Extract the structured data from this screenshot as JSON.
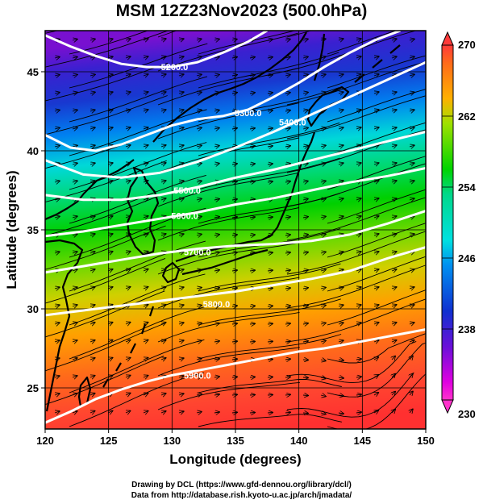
{
  "title": "MSM 12Z23Nov2023 (500.0hPa)",
  "footer": {
    "line1": "Drawing by DCL (https://www.gfd-dennou.org/library/dcl/)",
    "line2": "Data from http://database.rish.kyoto-u.ac.jp/arch/jmadata/"
  },
  "map": {
    "x_label": "Longitude (degrees)",
    "y_label": "Latitude  (degrees)",
    "x_range": [
      120,
      150
    ],
    "y_range": [
      22.4,
      47.6
    ],
    "x_ticks": [
      120,
      125,
      130,
      135,
      140,
      145,
      150
    ],
    "y_ticks": [
      25,
      30,
      35,
      40,
      45
    ],
    "contours": [
      {
        "label": "5200.0",
        "label_lon": 130.2,
        "label_lat": 45.3,
        "points": [
          [
            120,
            47.3
          ],
          [
            122,
            46.6
          ],
          [
            124,
            46.0
          ],
          [
            126,
            45.5
          ],
          [
            128,
            45.3
          ],
          [
            130,
            45.3
          ],
          [
            132,
            45.6
          ],
          [
            134,
            46.2
          ],
          [
            136,
            46.9
          ],
          [
            137.5,
            47.6
          ]
        ]
      },
      {
        "label": "5300.0",
        "label_lon": 136.0,
        "label_lat": 42.4,
        "points": [
          [
            120,
            41.0
          ],
          [
            122,
            40.2
          ],
          [
            124,
            40.0
          ],
          [
            126,
            40.4
          ],
          [
            128,
            41.0
          ],
          [
            130,
            41.6
          ],
          [
            132,
            42.0
          ],
          [
            134,
            42.2
          ],
          [
            136,
            42.6
          ],
          [
            138,
            43.4
          ],
          [
            140,
            44.3
          ],
          [
            142,
            45.3
          ],
          [
            144,
            46.2
          ],
          [
            146,
            47.0
          ],
          [
            148,
            47.6
          ]
        ]
      },
      {
        "label": "5400.0",
        "label_lon": 139.5,
        "label_lat": 41.8,
        "points": [
          [
            120,
            39.4
          ],
          [
            123,
            38.5
          ],
          [
            126,
            38.3
          ],
          [
            129,
            38.6
          ],
          [
            132,
            39.3
          ],
          [
            135,
            40.2
          ],
          [
            138,
            41.2
          ],
          [
            141,
            42.3
          ],
          [
            144,
            43.4
          ],
          [
            147,
            44.5
          ],
          [
            150,
            45.6
          ]
        ]
      },
      {
        "label": "5500.0",
        "label_lon": 131.2,
        "label_lat": 37.5,
        "points": [
          [
            120,
            37.2
          ],
          [
            123,
            36.9
          ],
          [
            126,
            36.9
          ],
          [
            129,
            37.2
          ],
          [
            132,
            37.7
          ],
          [
            135,
            38.3
          ],
          [
            138,
            38.8
          ],
          [
            141,
            39.4
          ],
          [
            144,
            40.0
          ],
          [
            147,
            40.6
          ],
          [
            150,
            41.2
          ]
        ]
      },
      {
        "label": "5600.0",
        "label_lon": 131.0,
        "label_lat": 35.9,
        "points": [
          [
            120,
            34.6
          ],
          [
            123,
            34.9
          ],
          [
            126,
            35.3
          ],
          [
            129,
            35.7
          ],
          [
            132,
            36.1
          ],
          [
            135,
            36.6
          ],
          [
            138,
            37.0
          ],
          [
            141,
            37.5
          ],
          [
            144,
            38.0
          ],
          [
            147,
            38.4
          ],
          [
            150,
            38.9
          ]
        ]
      },
      {
        "label": "5700.0",
        "label_lon": 132.0,
        "label_lat": 33.6,
        "points": [
          [
            120,
            32.3
          ],
          [
            123,
            32.7
          ],
          [
            126,
            33.1
          ],
          [
            129,
            33.5
          ],
          [
            132,
            33.8
          ],
          [
            135,
            34.0
          ],
          [
            138,
            34.1
          ],
          [
            141,
            34.3
          ],
          [
            144,
            34.7
          ],
          [
            147,
            35.4
          ],
          [
            150,
            36.2
          ]
        ]
      },
      {
        "label": "5800.0",
        "label_lon": 133.5,
        "label_lat": 30.3,
        "points": [
          [
            120,
            29.6
          ],
          [
            123,
            29.9
          ],
          [
            126,
            30.2
          ],
          [
            129,
            30.5
          ],
          [
            132,
            30.8
          ],
          [
            135,
            31.1
          ],
          [
            138,
            31.5
          ],
          [
            141,
            31.9
          ],
          [
            144,
            32.4
          ],
          [
            147,
            33.2
          ],
          [
            150,
            33.9
          ]
        ]
      },
      {
        "label": "5900.0",
        "label_lon": 132.0,
        "label_lat": 25.8,
        "points": [
          [
            120,
            22.8
          ],
          [
            122,
            23.5
          ],
          [
            124,
            24.3
          ],
          [
            126,
            24.9
          ],
          [
            128,
            25.4
          ],
          [
            130,
            25.8
          ],
          [
            132,
            26.1
          ],
          [
            134,
            26.4
          ],
          [
            136,
            26.7
          ],
          [
            138,
            27.0
          ],
          [
            140,
            27.3
          ],
          [
            142,
            27.5
          ],
          [
            144,
            27.8
          ],
          [
            146,
            28.1
          ],
          [
            148,
            28.4
          ],
          [
            150,
            28.7
          ]
        ]
      }
    ]
  },
  "colorbar": {
    "max_label": "270",
    "min_label": "230",
    "tick_labels": [
      "262",
      "254",
      "246",
      "238"
    ],
    "tick_values": [
      262,
      254,
      246,
      238
    ],
    "range": [
      230,
      270
    ]
  },
  "colors": {
    "temp_270": "#ff3a3a",
    "temp_262": "#ffb000",
    "temp_254": "#00d400",
    "temp_246": "#00e0e0",
    "temp_238": "#1030d0",
    "temp_230": "#e000e0",
    "contour": "#ffffff",
    "coast": "#000000"
  }
}
